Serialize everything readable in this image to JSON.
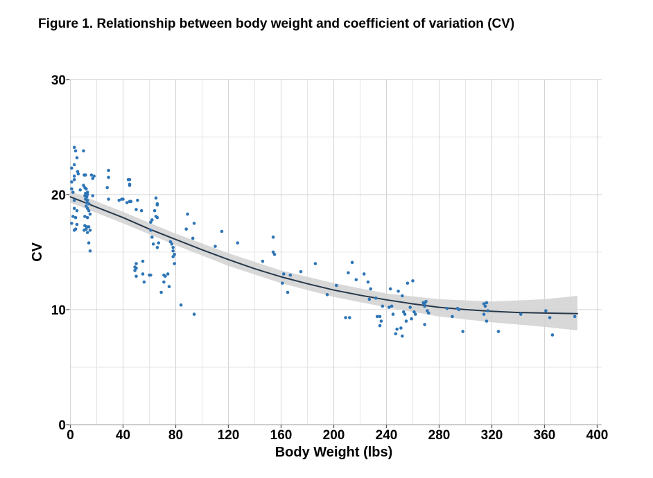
{
  "chart_data": {
    "type": "scatter",
    "title": "Figure 1. Relationship between body weight and coefficient of variation (CV)",
    "xlabel": "Body Weight (lbs)",
    "ylabel": "CV",
    "xlim": [
      0,
      400
    ],
    "ylim": [
      0,
      30
    ],
    "grid": true,
    "legend": "none",
    "x_major_ticks": [
      0,
      40,
      80,
      120,
      160,
      200,
      240,
      280,
      320,
      360,
      400
    ],
    "x_tick_labels": [
      "0",
      "40",
      "80",
      "120",
      "160",
      "200",
      "240",
      "280",
      "320",
      "360",
      "400"
    ],
    "x_minor_step": 20,
    "y_major_ticks": [
      0,
      10,
      20,
      30
    ],
    "y_tick_labels": [
      "0",
      "10",
      "20",
      "30"
    ],
    "y_minor_step": 5,
    "colors": {
      "point": "#2E75B6",
      "smooth_line": "#26374A",
      "confidence_band": "#D3D3D3",
      "grid_major": "#D4D4D4",
      "grid_minor": "#E6E6E6",
      "axis_line": "#BDBDBD",
      "tick": "#555555",
      "text": "#000000"
    },
    "points": [
      [
        3,
        24.1
      ],
      [
        4,
        23.8
      ],
      [
        1,
        22.3
      ],
      [
        3,
        22.6
      ],
      [
        5,
        23.2
      ],
      [
        5.5,
        22.0
      ],
      [
        6,
        21.8
      ],
      [
        3,
        21.6
      ],
      [
        3,
        21.3
      ],
      [
        1,
        21.1
      ],
      [
        1,
        20.5
      ],
      [
        2,
        20.2
      ],
      [
        3,
        19.5
      ],
      [
        3,
        18.8
      ],
      [
        5,
        18.6
      ],
      [
        2,
        18.1
      ],
      [
        4,
        18.0
      ],
      [
        1,
        17.5
      ],
      [
        5,
        17.4
      ],
      [
        4,
        17.0
      ],
      [
        3,
        16.9
      ],
      [
        10,
        23.8
      ],
      [
        10.5,
        21.7
      ],
      [
        11.5,
        21.7
      ],
      [
        16,
        21.7
      ],
      [
        18,
        21.6
      ],
      [
        17,
        21.4
      ],
      [
        7.5,
        20.4
      ],
      [
        10,
        20.8
      ],
      [
        11,
        20.6
      ],
      [
        12,
        20.5
      ],
      [
        13,
        20.2
      ],
      [
        11.5,
        20.1
      ],
      [
        13,
        20.0
      ],
      [
        11,
        19.9
      ],
      [
        12.5,
        19.8
      ],
      [
        11.5,
        19.6
      ],
      [
        13,
        19.5
      ],
      [
        12.5,
        19.3
      ],
      [
        14,
        19.2
      ],
      [
        12,
        19.0
      ],
      [
        17,
        19.9
      ],
      [
        13,
        18.8
      ],
      [
        14,
        18.6
      ],
      [
        15,
        18.3
      ],
      [
        11,
        18.1
      ],
      [
        13,
        18.0
      ],
      [
        11,
        17.3
      ],
      [
        12.5,
        17.2
      ],
      [
        14,
        17.2
      ],
      [
        12,
        17.0
      ],
      [
        10.5,
        16.9
      ],
      [
        15,
        16.9
      ],
      [
        13,
        16.7
      ],
      [
        14,
        15.8
      ],
      [
        15,
        15.1
      ],
      [
        29,
        22.1
      ],
      [
        29,
        21.5
      ],
      [
        28,
        20.6
      ],
      [
        29,
        19.6
      ],
      [
        37,
        19.5
      ],
      [
        39,
        19.6
      ],
      [
        40,
        19.6
      ],
      [
        43,
        19.3
      ],
      [
        45,
        19.4
      ],
      [
        46,
        19.4
      ],
      [
        44,
        21.3
      ],
      [
        45,
        21.3
      ],
      [
        45,
        20.9
      ],
      [
        45,
        20.8
      ],
      [
        51,
        19.5
      ],
      [
        50,
        18.7
      ],
      [
        54,
        18.6
      ],
      [
        50,
        14.0
      ],
      [
        49,
        13.7
      ],
      [
        50,
        13.6
      ],
      [
        49,
        13.4
      ],
      [
        55,
        14.2
      ],
      [
        55,
        13.1
      ],
      [
        50,
        12.9
      ],
      [
        56,
        12.4
      ],
      [
        65,
        19.7
      ],
      [
        66,
        19.2
      ],
      [
        66,
        19.1
      ],
      [
        64,
        18.6
      ],
      [
        62,
        17.8
      ],
      [
        61,
        17.6
      ],
      [
        65,
        18.1
      ],
      [
        66,
        18.0
      ],
      [
        61,
        16.9
      ],
      [
        62,
        16.3
      ],
      [
        67,
        15.8
      ],
      [
        63,
        15.7
      ],
      [
        66,
        15.4
      ],
      [
        76,
        15.9
      ],
      [
        77,
        15.7
      ],
      [
        78,
        15.4
      ],
      [
        78,
        15.1
      ],
      [
        79,
        14.8
      ],
      [
        78,
        14.6
      ],
      [
        79,
        14.0
      ],
      [
        60,
        13.0
      ],
      [
        61,
        13.0
      ],
      [
        71,
        13.0
      ],
      [
        72,
        12.9
      ],
      [
        71,
        12.4
      ],
      [
        74,
        13.1
      ],
      [
        75,
        12.0
      ],
      [
        69,
        11.5
      ],
      [
        84,
        10.4
      ],
      [
        94,
        9.6
      ],
      [
        89,
        18.3
      ],
      [
        94,
        17.5
      ],
      [
        88,
        17.0
      ],
      [
        93,
        16.2
      ],
      [
        115,
        16.8
      ],
      [
        110,
        15.5
      ],
      [
        127,
        15.8
      ],
      [
        146,
        14.2
      ],
      [
        154,
        16.3
      ],
      [
        154,
        15.0
      ],
      [
        155,
        14.8
      ],
      [
        162,
        13.1
      ],
      [
        167,
        13.0
      ],
      [
        161,
        12.3
      ],
      [
        165,
        11.5
      ],
      [
        175,
        13.3
      ],
      [
        186,
        14.0
      ],
      [
        195,
        11.3
      ],
      [
        202,
        12.1
      ],
      [
        209,
        9.3
      ],
      [
        212,
        9.3
      ],
      [
        214,
        14.1
      ],
      [
        211,
        13.2
      ],
      [
        217,
        12.6
      ],
      [
        223,
        13.1
      ],
      [
        226,
        12.4
      ],
      [
        228,
        11.8
      ],
      [
        227,
        10.9
      ],
      [
        232,
        11.0
      ],
      [
        237,
        10.3
      ],
      [
        233,
        9.4
      ],
      [
        235,
        9.4
      ],
      [
        236,
        9.0
      ],
      [
        235,
        8.6
      ],
      [
        243,
        11.8
      ],
      [
        242,
        10.2
      ],
      [
        244,
        10.3
      ],
      [
        245,
        9.6
      ],
      [
        249,
        11.6
      ],
      [
        252,
        11.2
      ],
      [
        247,
        7.9
      ],
      [
        248,
        8.3
      ],
      [
        251,
        8.4
      ],
      [
        252,
        7.7
      ],
      [
        253,
        9.8
      ],
      [
        254,
        9.6
      ],
      [
        255,
        9.0
      ],
      [
        259,
        9.2
      ],
      [
        256,
        12.3
      ],
      [
        260,
        12.5
      ],
      [
        258,
        10.2
      ],
      [
        261,
        9.8
      ],
      [
        262,
        9.6
      ],
      [
        268,
        10.6
      ],
      [
        269,
        10.5
      ],
      [
        269,
        10.3
      ],
      [
        270,
        10.7
      ],
      [
        271,
        9.9
      ],
      [
        272,
        9.7
      ],
      [
        269,
        8.7
      ],
      [
        286,
        10.1
      ],
      [
        290,
        9.4
      ],
      [
        294,
        10.1
      ],
      [
        295,
        10.0
      ],
      [
        298,
        8.1
      ],
      [
        314,
        10.5
      ],
      [
        315,
        10.3
      ],
      [
        316,
        10.6
      ],
      [
        314,
        9.6
      ],
      [
        317,
        9.9
      ],
      [
        316,
        9.0
      ],
      [
        325,
        8.1
      ],
      [
        342,
        9.6
      ],
      [
        361,
        9.9
      ],
      [
        364,
        9.3
      ],
      [
        366,
        7.8
      ],
      [
        383,
        9.4
      ]
    ],
    "smooth_line": [
      [
        0,
        19.8
      ],
      [
        20,
        18.9
      ],
      [
        40,
        18.0
      ],
      [
        60,
        17.0
      ],
      [
        80,
        16.1
      ],
      [
        100,
        15.2
      ],
      [
        120,
        14.35
      ],
      [
        140,
        13.55
      ],
      [
        160,
        12.85
      ],
      [
        180,
        12.25
      ],
      [
        200,
        11.7
      ],
      [
        220,
        11.25
      ],
      [
        240,
        10.85
      ],
      [
        260,
        10.5
      ],
      [
        280,
        10.2
      ],
      [
        300,
        10.0
      ],
      [
        320,
        9.85
      ],
      [
        340,
        9.75
      ],
      [
        360,
        9.7
      ],
      [
        385,
        9.65
      ]
    ],
    "confidence_band": {
      "x": [
        0,
        40,
        80,
        120,
        160,
        200,
        240,
        280,
        320,
        360,
        385
      ],
      "upper": [
        20.3,
        18.5,
        16.6,
        14.9,
        13.4,
        12.3,
        11.4,
        10.9,
        10.7,
        10.9,
        11.2
      ],
      "lower": [
        19.3,
        17.5,
        15.6,
        13.8,
        12.3,
        11.1,
        10.2,
        9.4,
        8.9,
        8.5,
        8.2
      ]
    }
  }
}
